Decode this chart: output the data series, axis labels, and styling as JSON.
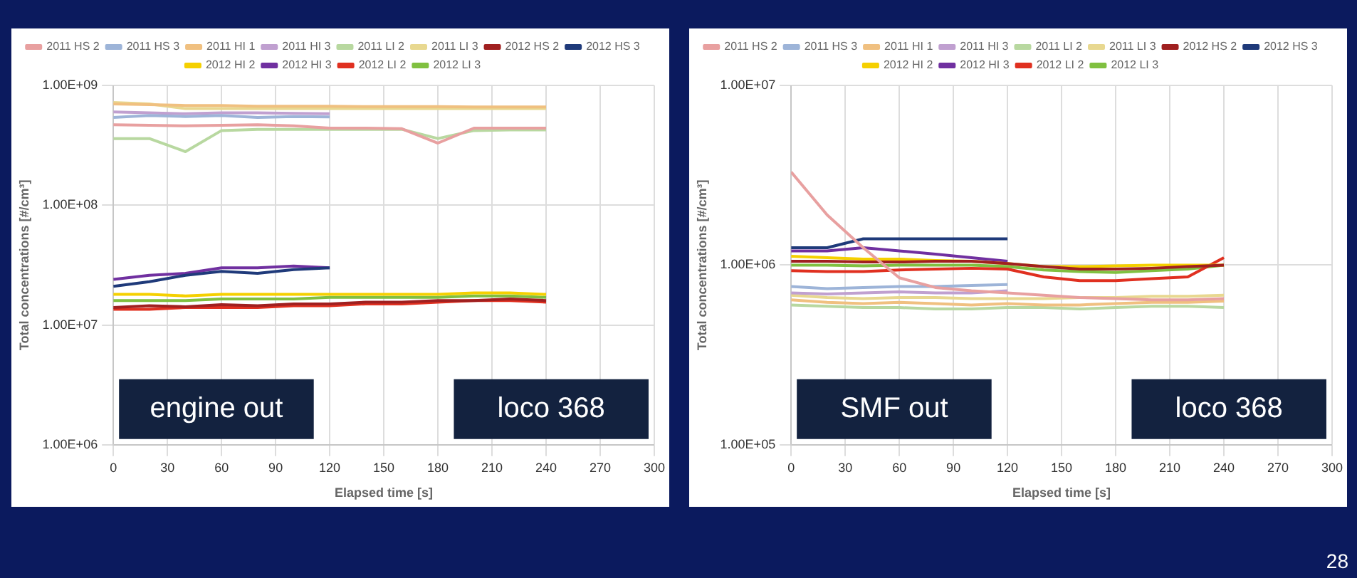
{
  "chart_data": [
    {
      "type": "line",
      "xlabel": "Elapsed time [s]",
      "ylabel": "Total concentrations [#/cm³]",
      "log": "y",
      "grid": true,
      "legend": "top",
      "marker": "none",
      "line_style": "solid",
      "xlim": [
        0,
        300
      ],
      "xticks": [
        0,
        30,
        60,
        90,
        120,
        150,
        180,
        210,
        240,
        270,
        300
      ],
      "ylim": [
        1000000,
        1000000000
      ],
      "yticks": [
        {
          "value": 1000000,
          "label": "1.00E+06"
        },
        {
          "value": 10000000,
          "label": "1.00E+07"
        },
        {
          "value": 100000000,
          "label": "1.00E+08"
        },
        {
          "value": 1000000000,
          "label": "1.00E+09"
        }
      ],
      "x": [
        0,
        20,
        40,
        60,
        80,
        100,
        120,
        140,
        160,
        180,
        200,
        220,
        240
      ],
      "annotations": [
        "engine out",
        "loco 368"
      ],
      "series": [
        {
          "name": "2011 HS 2",
          "color": "#e8a0a0",
          "values": [
            470000000,
            465000000,
            460000000,
            465000000,
            470000000,
            460000000,
            440000000,
            440000000,
            435000000,
            330000000,
            440000000,
            440000000,
            440000000
          ]
        },
        {
          "name": "2011 HS 3",
          "color": "#9db4d8",
          "x": [
            0,
            20,
            40,
            60,
            80,
            100,
            120
          ],
          "values": [
            540000000,
            560000000,
            550000000,
            560000000,
            540000000,
            550000000,
            545000000
          ]
        },
        {
          "name": "2011 HI 1",
          "color": "#f0c080",
          "values": [
            700000000,
            690000000,
            680000000,
            680000000,
            670000000,
            670000000,
            670000000,
            665000000,
            665000000,
            665000000,
            660000000,
            660000000,
            660000000
          ]
        },
        {
          "name": "2011 HI 3",
          "color": "#c0a0d0",
          "x": [
            0,
            20,
            40,
            60,
            80,
            100,
            120
          ],
          "values": [
            600000000,
            590000000,
            580000000,
            590000000,
            590000000,
            585000000,
            580000000
          ]
        },
        {
          "name": "2011 LI 2",
          "color": "#b8d8a0",
          "values": [
            360000000,
            360000000,
            280000000,
            420000000,
            430000000,
            430000000,
            430000000,
            430000000,
            430000000,
            360000000,
            420000000,
            425000000,
            425000000
          ]
        },
        {
          "name": "2011 LI 3",
          "color": "#e8d890",
          "values": [
            720000000,
            700000000,
            640000000,
            640000000,
            640000000,
            640000000,
            640000000,
            640000000,
            640000000,
            640000000,
            640000000,
            640000000,
            640000000
          ]
        },
        {
          "name": "2012 HS 2",
          "color": "#a02020",
          "values": [
            14000000,
            14500000,
            14200000,
            14800000,
            14500000,
            15000000,
            15000000,
            15500000,
            15500000,
            16000000,
            16000000,
            16500000,
            16000000
          ]
        },
        {
          "name": "2012 HS 3",
          "color": "#1f3a7a",
          "x": [
            0,
            20,
            40,
            60,
            80,
            100,
            120
          ],
          "values": [
            21000000,
            23000000,
            26000000,
            28000000,
            27000000,
            29000000,
            30000000
          ]
        },
        {
          "name": "2012 HI 2",
          "color": "#f5d000",
          "values": [
            18000000,
            18000000,
            17500000,
            18000000,
            18000000,
            18000000,
            18000000,
            18000000,
            18000000,
            18000000,
            18500000,
            18500000,
            18000000
          ]
        },
        {
          "name": "2012 HI 3",
          "color": "#7030a0",
          "x": [
            0,
            20,
            40,
            60,
            80,
            100,
            120
          ],
          "values": [
            24000000,
            26000000,
            27000000,
            30000000,
            30000000,
            31000000,
            30000000
          ]
        },
        {
          "name": "2012 LI 2",
          "color": "#e03020",
          "values": [
            13500000,
            13500000,
            14000000,
            14000000,
            14000000,
            14500000,
            14500000,
            15000000,
            15000000,
            15500000,
            16000000,
            16000000,
            15500000
          ]
        },
        {
          "name": "2012 LI 3",
          "color": "#80c040",
          "values": [
            16000000,
            16000000,
            16000000,
            16500000,
            16500000,
            16500000,
            17000000,
            17000000,
            17000000,
            17000000,
            17500000,
            17500000,
            17000000
          ]
        }
      ]
    },
    {
      "type": "line",
      "xlabel": "Elapsed time [s]",
      "ylabel": "Total concentrations [#/cm³]",
      "log": "y",
      "grid": true,
      "legend": "top",
      "marker": "none",
      "line_style": "solid",
      "xlim": [
        0,
        300
      ],
      "xticks": [
        0,
        30,
        60,
        90,
        120,
        150,
        180,
        210,
        240,
        270,
        300
      ],
      "ylim": [
        100000,
        10000000
      ],
      "yticks": [
        {
          "value": 100000,
          "label": "1.00E+05"
        },
        {
          "value": 1000000,
          "label": "1.00E+06"
        },
        {
          "value": 10000000,
          "label": "1.00E+07"
        }
      ],
      "x": [
        0,
        20,
        40,
        60,
        80,
        100,
        120,
        140,
        160,
        180,
        200,
        220,
        240
      ],
      "annotations": [
        "SMF out",
        "loco 368",
        "28"
      ],
      "series": [
        {
          "name": "2011 HS 2",
          "color": "#e8a0a0",
          "values": [
            3300000,
            1900000,
            1250000,
            850000,
            750000,
            720000,
            700000,
            680000,
            660000,
            650000,
            640000,
            640000,
            650000
          ]
        },
        {
          "name": "2011 HS 3",
          "color": "#9db4d8",
          "x": [
            0,
            20,
            40,
            60,
            80,
            100,
            120
          ],
          "values": [
            760000,
            740000,
            750000,
            760000,
            760000,
            770000,
            780000
          ]
        },
        {
          "name": "2011 HI 1",
          "color": "#f0c080",
          "values": [
            640000,
            620000,
            610000,
            620000,
            610000,
            600000,
            610000,
            600000,
            600000,
            610000,
            620000,
            620000,
            630000
          ]
        },
        {
          "name": "2011 HI 3",
          "color": "#c0a0d0",
          "x": [
            0,
            20,
            40,
            60,
            80,
            100,
            120
          ],
          "values": [
            700000,
            690000,
            700000,
            710000,
            700000,
            700000,
            720000
          ]
        },
        {
          "name": "2011 LI 2",
          "color": "#b8d8a0",
          "values": [
            600000,
            590000,
            580000,
            580000,
            570000,
            570000,
            580000,
            580000,
            570000,
            580000,
            590000,
            590000,
            580000
          ]
        },
        {
          "name": "2011 LI 3",
          "color": "#e8d890",
          "values": [
            680000,
            660000,
            650000,
            660000,
            660000,
            650000,
            650000,
            650000,
            660000,
            660000,
            670000,
            670000,
            680000
          ]
        },
        {
          "name": "2012 HS 2",
          "color": "#a02020",
          "values": [
            1050000,
            1050000,
            1040000,
            1040000,
            1050000,
            1050000,
            1020000,
            980000,
            950000,
            950000,
            960000,
            980000,
            1000000
          ]
        },
        {
          "name": "2012 HS 3",
          "color": "#1f3a7a",
          "x": [
            0,
            20,
            40,
            60,
            80,
            100,
            120
          ],
          "values": [
            1250000,
            1250000,
            1400000,
            1400000,
            1400000,
            1400000,
            1400000
          ]
        },
        {
          "name": "2012 HI 2",
          "color": "#f5d000",
          "values": [
            1120000,
            1100000,
            1080000,
            1080000,
            1060000,
            1050000,
            1020000,
            980000,
            980000,
            990000,
            1000000,
            1000000,
            1000000
          ]
        },
        {
          "name": "2012 HI 3",
          "color": "#7030a0",
          "x": [
            0,
            20,
            40,
            60,
            80,
            100,
            120
          ],
          "values": [
            1200000,
            1200000,
            1250000,
            1200000,
            1150000,
            1100000,
            1050000
          ]
        },
        {
          "name": "2012 LI 2",
          "color": "#e03020",
          "values": [
            930000,
            920000,
            920000,
            940000,
            950000,
            960000,
            950000,
            860000,
            820000,
            820000,
            840000,
            860000,
            1100000
          ]
        },
        {
          "name": "2012 LI 3",
          "color": "#80c040",
          "values": [
            1000000,
            1000000,
            990000,
            1000000,
            1000000,
            1000000,
            980000,
            940000,
            920000,
            910000,
            930000,
            950000,
            1000000
          ]
        }
      ]
    }
  ]
}
